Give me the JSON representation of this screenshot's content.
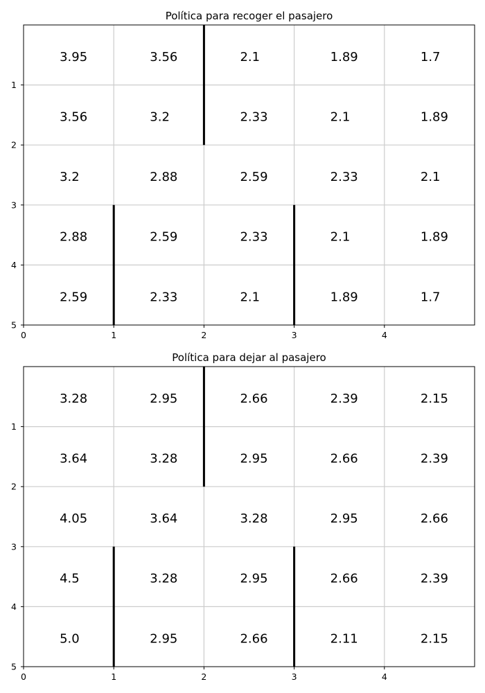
{
  "chart_data": [
    {
      "type": "heatmap",
      "title": "Política para recoger el pasajero",
      "xlim": [
        0,
        5
      ],
      "ylim": [
        5,
        0
      ],
      "x_ticks": [
        "0",
        "1",
        "2",
        "3",
        "4"
      ],
      "y_ticks": [
        "1",
        "2",
        "3",
        "4",
        "5"
      ],
      "grid": true,
      "rows": [
        [
          "3.95",
          "3.56",
          "2.1",
          "1.89",
          "1.7"
        ],
        [
          "3.56",
          "3.2",
          "2.33",
          "2.1",
          "1.89"
        ],
        [
          "3.2",
          "2.88",
          "2.59",
          "2.33",
          "2.1"
        ],
        [
          "2.88",
          "2.59",
          "2.33",
          "2.1",
          "1.89"
        ],
        [
          "2.59",
          "2.33",
          "2.1",
          "1.89",
          "1.7"
        ]
      ],
      "walls": [
        {
          "x": 2,
          "y_from": 0,
          "y_to": 2
        },
        {
          "x": 1,
          "y_from": 3,
          "y_to": 5
        },
        {
          "x": 3,
          "y_from": 3,
          "y_to": 5
        }
      ]
    },
    {
      "type": "heatmap",
      "title": "Política para dejar al pasajero",
      "xlim": [
        0,
        5
      ],
      "ylim": [
        5,
        0
      ],
      "x_ticks": [
        "0",
        "1",
        "2",
        "3",
        "4"
      ],
      "y_ticks": [
        "1",
        "2",
        "3",
        "4",
        "5"
      ],
      "grid": true,
      "rows": [
        [
          "3.28",
          "2.95",
          "2.66",
          "2.39",
          "2.15"
        ],
        [
          "3.64",
          "3.28",
          "2.95",
          "2.66",
          "2.39"
        ],
        [
          "4.05",
          "3.64",
          "3.28",
          "2.95",
          "2.66"
        ],
        [
          "4.5",
          "3.28",
          "2.95",
          "2.66",
          "2.39"
        ],
        [
          "5.0",
          "2.95",
          "2.66",
          "2.11",
          "2.15"
        ]
      ],
      "walls": [
        {
          "x": 2,
          "y_from": 0,
          "y_to": 2
        },
        {
          "x": 1,
          "y_from": 3,
          "y_to": 5
        },
        {
          "x": 3,
          "y_from": 3,
          "y_to": 5
        }
      ]
    }
  ]
}
